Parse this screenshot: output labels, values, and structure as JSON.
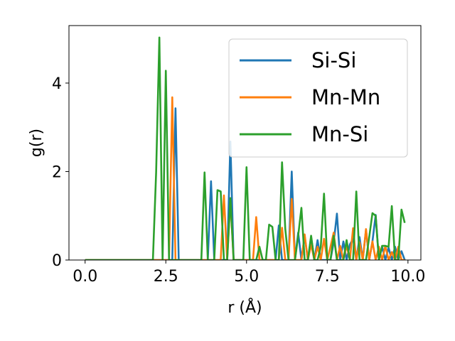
{
  "chart_data": {
    "type": "line",
    "title": "",
    "xlabel": "r (Å)",
    "ylabel": "g(r)",
    "xlim": [
      -0.5,
      10.4
    ],
    "ylim": [
      0,
      5.3
    ],
    "xticks": [
      0.0,
      2.5,
      5.0,
      7.5,
      10.0
    ],
    "xtick_labels": [
      "0.0",
      "2.5",
      "5.0",
      "7.5",
      "10.0"
    ],
    "yticks": [
      0,
      2,
      4
    ],
    "ytick_labels": [
      "0",
      "2",
      "4"
    ],
    "grid": false,
    "legend_position": "top-right",
    "series": [
      {
        "name": "Si-Si",
        "color": "#1f77b4",
        "x": [
          0.0,
          2.7,
          2.8,
          2.9,
          3.8,
          3.9,
          4.0,
          4.4,
          4.5,
          4.6,
          5.9,
          6.0,
          6.1,
          6.3,
          6.4,
          6.5,
          6.6,
          6.7,
          6.8,
          6.9,
          7.0,
          7.1,
          7.2,
          7.3,
          7.6,
          7.7,
          7.8,
          7.9,
          8.0,
          8.1,
          8.2,
          8.3,
          8.4,
          8.5,
          8.6,
          8.7,
          8.8,
          8.9,
          9.0,
          9.1,
          9.2,
          9.3,
          9.4,
          9.5,
          9.6,
          9.7,
          9.8,
          9.9
        ],
        "y": [
          0.0,
          0.0,
          3.43,
          0.0,
          0.0,
          1.78,
          0.0,
          0.0,
          2.68,
          0.0,
          0.0,
          0.78,
          0.0,
          0.0,
          2.0,
          0.0,
          0.62,
          0.0,
          0.55,
          0.0,
          0.52,
          0.0,
          0.45,
          0.0,
          0.0,
          0.4,
          1.05,
          0.0,
          0.42,
          0.0,
          0.35,
          0.48,
          0.0,
          0.52,
          0.0,
          0.68,
          0.0,
          0.42,
          1.02,
          0.0,
          0.3,
          0.0,
          0.28,
          0.0,
          0.3,
          0.0,
          0.2,
          0.0
        ]
      },
      {
        "name": "Mn-Mn",
        "color": "#ff7f0e",
        "x": [
          0.0,
          2.6,
          2.7,
          2.8,
          4.2,
          4.3,
          4.4,
          4.5,
          4.6,
          5.2,
          5.3,
          5.4,
          6.0,
          6.1,
          6.2,
          6.3,
          6.4,
          6.5,
          6.7,
          6.8,
          6.9,
          7.0,
          7.1,
          7.2,
          7.3,
          7.4,
          7.5,
          7.6,
          7.7,
          7.8,
          7.9,
          8.0,
          8.1,
          8.2,
          8.3,
          8.4,
          8.5,
          8.6,
          8.7,
          8.8,
          8.9,
          9.0,
          9.1,
          9.2,
          9.3,
          9.4,
          9.5,
          9.6,
          9.7,
          9.8,
          9.9
        ],
        "y": [
          0.0,
          0.0,
          3.68,
          0.0,
          0.0,
          1.46,
          0.0,
          1.35,
          0.0,
          0.0,
          0.97,
          0.0,
          0.0,
          0.73,
          0.0,
          0.0,
          1.38,
          0.0,
          0.0,
          0.58,
          0.0,
          0.35,
          0.0,
          0.3,
          0.0,
          0.48,
          0.0,
          0.3,
          0.62,
          0.0,
          0.32,
          0.0,
          0.33,
          0.0,
          0.72,
          0.0,
          0.4,
          0.0,
          0.7,
          0.0,
          0.42,
          0.0,
          0.3,
          0.0,
          0.32,
          0.0,
          0.18,
          0.0,
          0.3,
          0.0,
          0.0
        ]
      },
      {
        "name": "Mn-Si",
        "color": "#2ca02c",
        "x": [
          0.0,
          2.1,
          2.2,
          2.3,
          2.4,
          2.5,
          2.6,
          3.6,
          3.7,
          3.8,
          4.0,
          4.1,
          4.2,
          4.3,
          4.4,
          4.5,
          4.6,
          4.7,
          4.8,
          4.9,
          5.0,
          5.1,
          5.2,
          5.3,
          5.4,
          5.5,
          5.6,
          5.7,
          5.8,
          5.9,
          6.0,
          6.1,
          6.2,
          6.3,
          6.4,
          6.5,
          6.6,
          6.7,
          6.8,
          6.9,
          7.0,
          7.1,
          7.2,
          7.3,
          7.4,
          7.5,
          7.6,
          7.7,
          7.8,
          7.9,
          8.0,
          8.1,
          8.2,
          8.3,
          8.4,
          8.5,
          8.6,
          8.7,
          8.8,
          8.9,
          9.0,
          9.1,
          9.2,
          9.3,
          9.4,
          9.5,
          9.6,
          9.7,
          9.8,
          9.9
        ],
        "y": [
          0.0,
          0.0,
          1.98,
          5.03,
          0.0,
          4.28,
          0.0,
          0.0,
          1.98,
          0.0,
          0.0,
          1.58,
          1.55,
          0.0,
          0.0,
          1.4,
          0.0,
          0.0,
          0.0,
          0.0,
          2.1,
          0.0,
          0.0,
          0.0,
          0.3,
          0.0,
          0.0,
          0.8,
          0.75,
          0.0,
          0.0,
          2.21,
          0.7,
          0.0,
          0.0,
          0.0,
          0.55,
          1.18,
          0.0,
          0.0,
          0.55,
          0.0,
          0.0,
          0.3,
          1.5,
          0.0,
          0.0,
          0.55,
          0.0,
          0.0,
          0.0,
          0.45,
          0.0,
          0.0,
          1.55,
          0.0,
          0.0,
          0.0,
          0.52,
          1.06,
          1.0,
          0.0,
          0.32,
          0.32,
          0.3,
          1.22,
          0.0,
          0.0,
          1.14,
          0.84
        ]
      }
    ]
  }
}
